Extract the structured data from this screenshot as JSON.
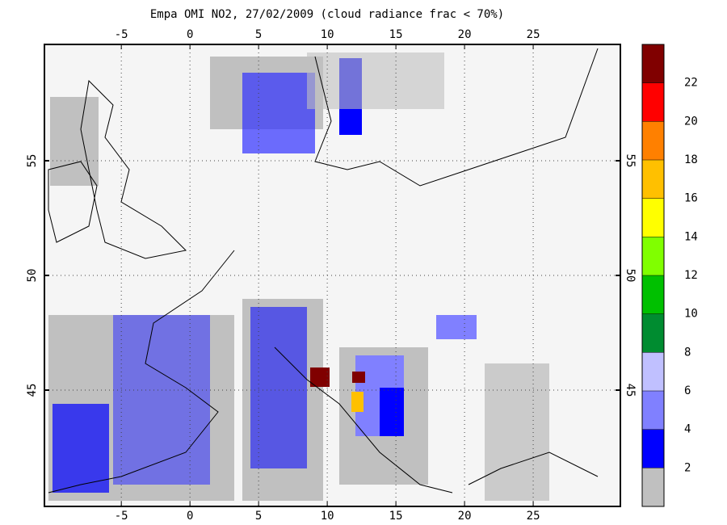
{
  "map": {
    "title": "Empa OMI NO2, 27/02/2009 (cloud radiance frac < 70%)",
    "lon_lim": [
      -10.6,
      31.35
    ],
    "lat_lim": [
      39.93,
      60.07
    ],
    "lon_ticks": [
      -5,
      0,
      5,
      10,
      15,
      20,
      25
    ],
    "lat_ticks": [
      45,
      50,
      55
    ],
    "grid": true,
    "colorbar": {
      "colors": [
        "#c0c0c0",
        "#0000ff",
        "#8080ff",
        "#c0c0ff",
        "#008c30",
        "#00c000",
        "#80ff00",
        "#ffff00",
        "#ffc000",
        "#ff8000",
        "#ff0000",
        "#800000"
      ],
      "ticks": [
        2,
        4,
        6,
        8,
        10,
        12,
        14,
        16,
        18,
        20,
        22
      ]
    }
  }
}
